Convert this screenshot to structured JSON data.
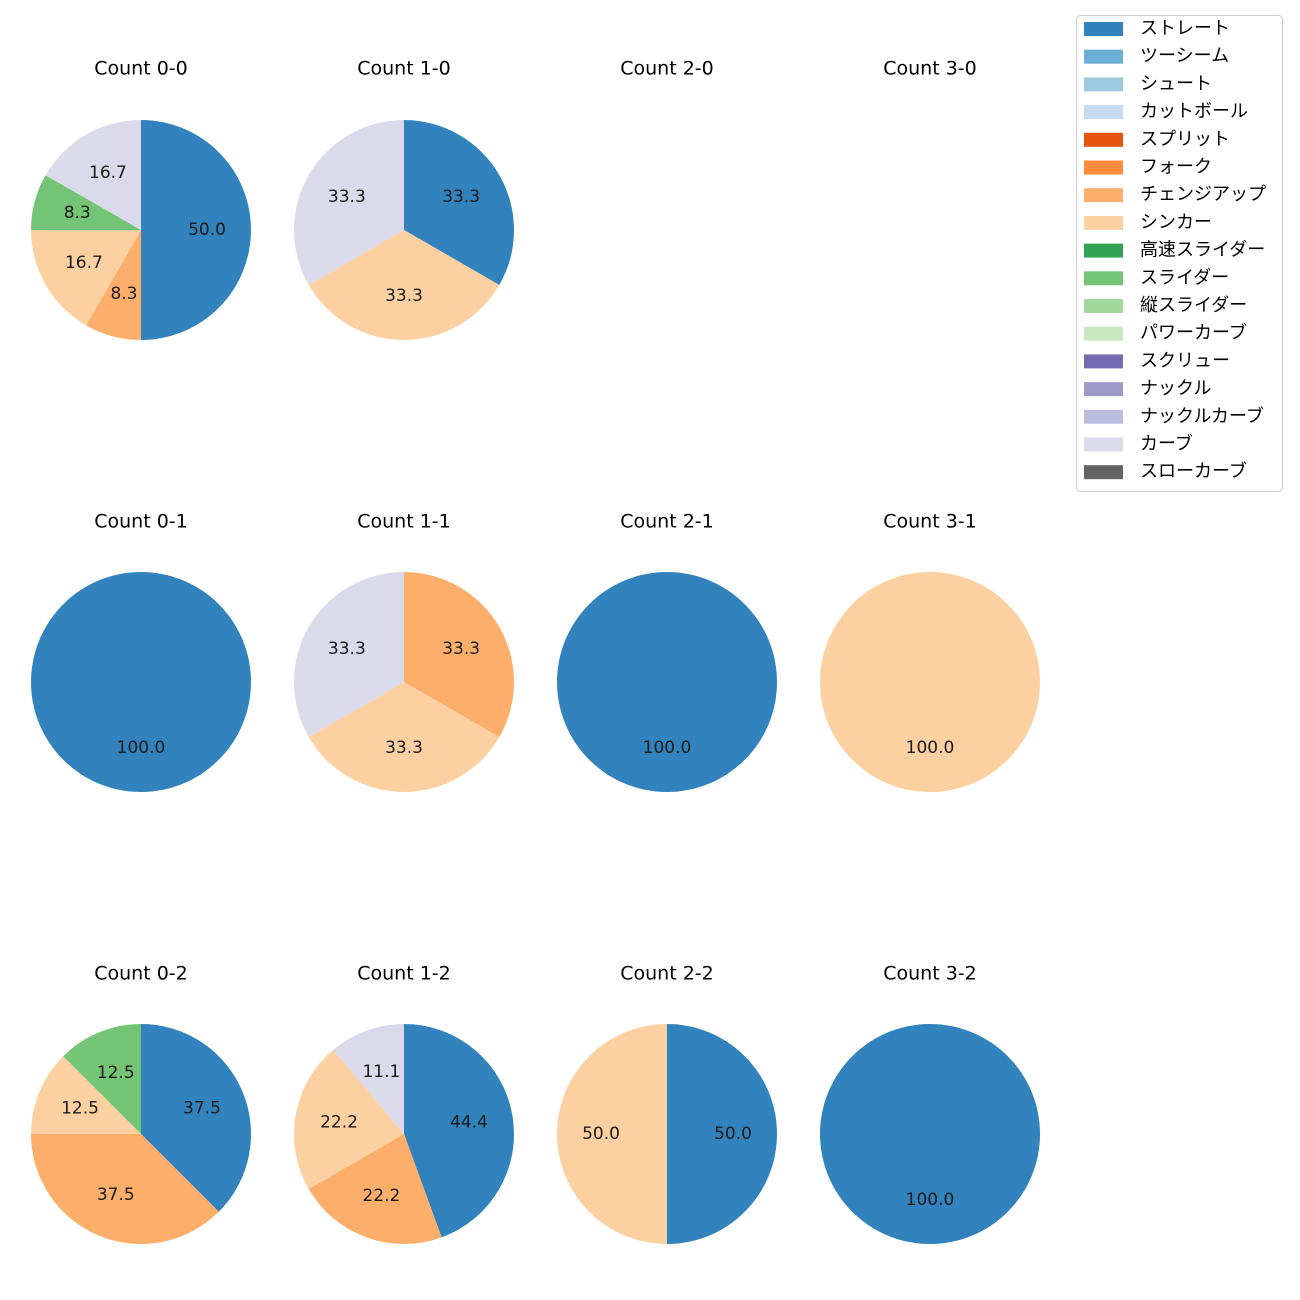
{
  "chart_data": {
    "type": "pie",
    "legend": {
      "placement": "top-right",
      "entries": [
        {
          "label": "ストレート",
          "color": "#3182bd"
        },
        {
          "label": "ツーシーム",
          "color": "#6baed6"
        },
        {
          "label": "シュート",
          "color": "#9ecae1"
        },
        {
          "label": "カットボール",
          "color": "#c6dbef"
        },
        {
          "label": "スプリット",
          "color": "#e6550d"
        },
        {
          "label": "フォーク",
          "color": "#fd8d3c"
        },
        {
          "label": "チェンジアップ",
          "color": "#fdae6b"
        },
        {
          "label": "シンカー",
          "color": "#fdd0a2"
        },
        {
          "label": "高速スライダー",
          "color": "#31a354"
        },
        {
          "label": "スライダー",
          "color": "#74c476"
        },
        {
          "label": "縦スライダー",
          "color": "#a1d99b"
        },
        {
          "label": "パワーカーブ",
          "color": "#c7e9c0"
        },
        {
          "label": "スクリュー",
          "color": "#756bb1"
        },
        {
          "label": "ナックル",
          "color": "#9e9ac8"
        },
        {
          "label": "ナックルカーブ",
          "color": "#bcbddc"
        },
        {
          "label": "カーブ",
          "color": "#dadaeb"
        },
        {
          "label": "スローカーブ",
          "color": "#636363"
        }
      ]
    },
    "pies": [
      {
        "title": "Count 0-0",
        "slices": [
          {
            "pitch": "ストレート",
            "value": 50.0,
            "label": "50.0"
          },
          {
            "pitch": "チェンジアップ",
            "value": 8.3,
            "label": "8.3"
          },
          {
            "pitch": "シンカー",
            "value": 16.7,
            "label": "16.7"
          },
          {
            "pitch": "スライダー",
            "value": 8.3,
            "label": "8.3"
          },
          {
            "pitch": "カーブ",
            "value": 16.7,
            "label": "16.7"
          }
        ]
      },
      {
        "title": "Count 1-0",
        "slices": [
          {
            "pitch": "ストレート",
            "value": 33.3,
            "label": "33.3"
          },
          {
            "pitch": "シンカー",
            "value": 33.3,
            "label": "33.3"
          },
          {
            "pitch": "カーブ",
            "value": 33.3,
            "label": "33.3"
          }
        ]
      },
      {
        "title": "Count 2-0",
        "slices": []
      },
      {
        "title": "Count 3-0",
        "slices": []
      },
      {
        "title": "Count 0-1",
        "slices": [
          {
            "pitch": "ストレート",
            "value": 100.0,
            "label": "100.0"
          }
        ]
      },
      {
        "title": "Count 1-1",
        "slices": [
          {
            "pitch": "チェンジアップ",
            "value": 33.3,
            "label": "33.3"
          },
          {
            "pitch": "シンカー",
            "value": 33.3,
            "label": "33.3"
          },
          {
            "pitch": "カーブ",
            "value": 33.3,
            "label": "33.3"
          }
        ]
      },
      {
        "title": "Count 2-1",
        "slices": [
          {
            "pitch": "ストレート",
            "value": 100.0,
            "label": "100.0"
          }
        ]
      },
      {
        "title": "Count 3-1",
        "slices": [
          {
            "pitch": "シンカー",
            "value": 100.0,
            "label": "100.0"
          }
        ]
      },
      {
        "title": "Count 0-2",
        "slices": [
          {
            "pitch": "ストレート",
            "value": 37.5,
            "label": "37.5"
          },
          {
            "pitch": "チェンジアップ",
            "value": 37.5,
            "label": "37.5"
          },
          {
            "pitch": "シンカー",
            "value": 12.5,
            "label": "12.5"
          },
          {
            "pitch": "スライダー",
            "value": 12.5,
            "label": "12.5"
          }
        ]
      },
      {
        "title": "Count 1-2",
        "slices": [
          {
            "pitch": "ストレート",
            "value": 44.4,
            "label": "44.4"
          },
          {
            "pitch": "チェンジアップ",
            "value": 22.2,
            "label": "22.2"
          },
          {
            "pitch": "シンカー",
            "value": 22.2,
            "label": "22.2"
          },
          {
            "pitch": "カーブ",
            "value": 11.1,
            "label": "11.1"
          }
        ]
      },
      {
        "title": "Count 2-2",
        "slices": [
          {
            "pitch": "ストレート",
            "value": 50.0,
            "label": "50.0"
          },
          {
            "pitch": "シンカー",
            "value": 50.0,
            "label": "50.0"
          }
        ]
      },
      {
        "title": "Count 3-2",
        "slices": [
          {
            "pitch": "ストレート",
            "value": 100.0,
            "label": "100.0"
          }
        ]
      }
    ]
  }
}
